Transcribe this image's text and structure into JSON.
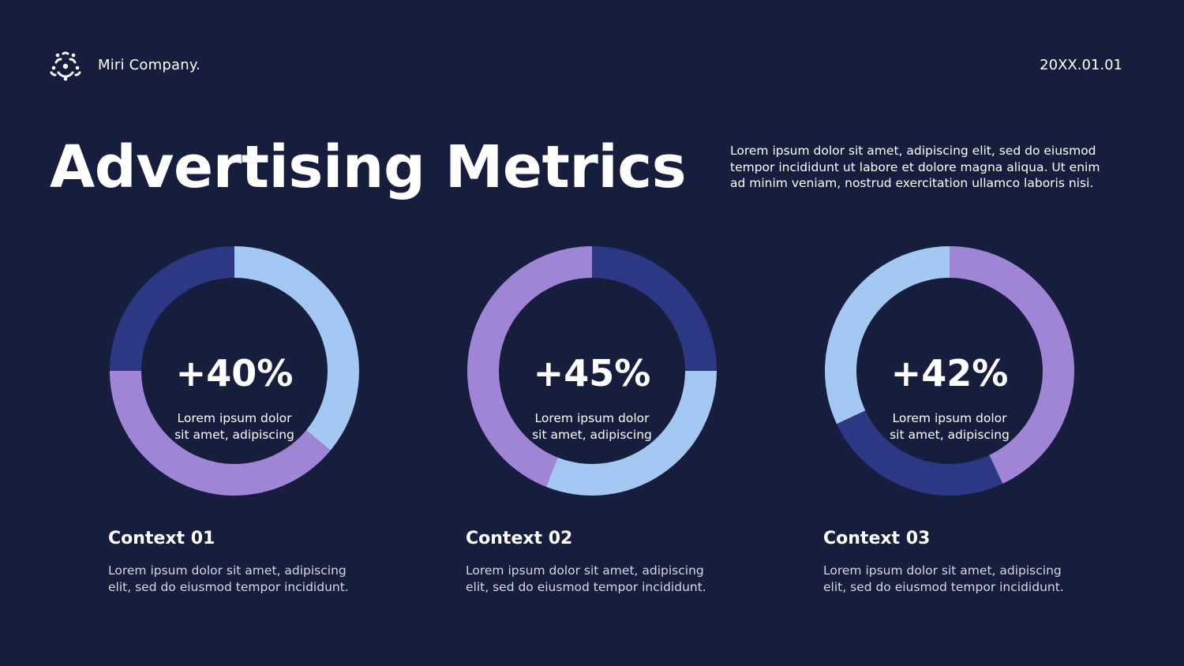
{
  "header": {
    "logo_icon": "flower-dots-icon",
    "company": "Miri Company.",
    "date": "20XX.01.01"
  },
  "title": "Advertising Metrics",
  "intro": "Lorem ipsum dolor sit amet, adipiscing elit, sed do eiusmod tempor incididunt ut labore et dolore magna aliqua. Ut enim ad minim veniam, nostrud exercitation ullamco laboris nisi.",
  "colors": {
    "background": "#171d3c",
    "light_blue": "#a3c8f1",
    "purple": "#a085d6",
    "navy": "#2c3883"
  },
  "cards": [
    {
      "value": "+40%",
      "center_text_line1": "Lorem ipsum dolor",
      "center_text_line2": "sit amet, adipiscing",
      "title": "Context 01",
      "desc_line1": "Lorem ipsum dolor sit amet, adipiscing",
      "desc_line2": "elit, sed do eiusmod tempor incididunt."
    },
    {
      "value": "+45%",
      "center_text_line1": "Lorem ipsum dolor",
      "center_text_line2": "sit amet, adipiscing",
      "title": "Context 02",
      "desc_line1": "Lorem ipsum dolor sit amet, adipiscing",
      "desc_line2": "elit, sed do eiusmod tempor incididunt."
    },
    {
      "value": "+42%",
      "center_text_line1": "Lorem ipsum dolor",
      "center_text_line2": "sit amet, adipiscing",
      "title": "Context 03",
      "desc_line1": "Lorem ipsum dolor sit amet, adipiscing",
      "desc_line2": "elit, sed do eiusmod tempor incididunt."
    }
  ],
  "chart_data": [
    {
      "type": "pie",
      "segments": [
        {
          "value": 36,
          "color": "#a3c8f1"
        },
        {
          "value": 39,
          "color": "#a085d6"
        },
        {
          "value": 25,
          "color": "#2c3883"
        }
      ]
    },
    {
      "type": "pie",
      "segments": [
        {
          "value": 25,
          "color": "#2c3883"
        },
        {
          "value": 31,
          "color": "#a3c8f1"
        },
        {
          "value": 44,
          "color": "#a085d6"
        }
      ]
    },
    {
      "type": "pie",
      "segments": [
        {
          "value": 43,
          "color": "#a085d6"
        },
        {
          "value": 25,
          "color": "#2c3883"
        },
        {
          "value": 32,
          "color": "#a3c8f1"
        }
      ]
    }
  ]
}
